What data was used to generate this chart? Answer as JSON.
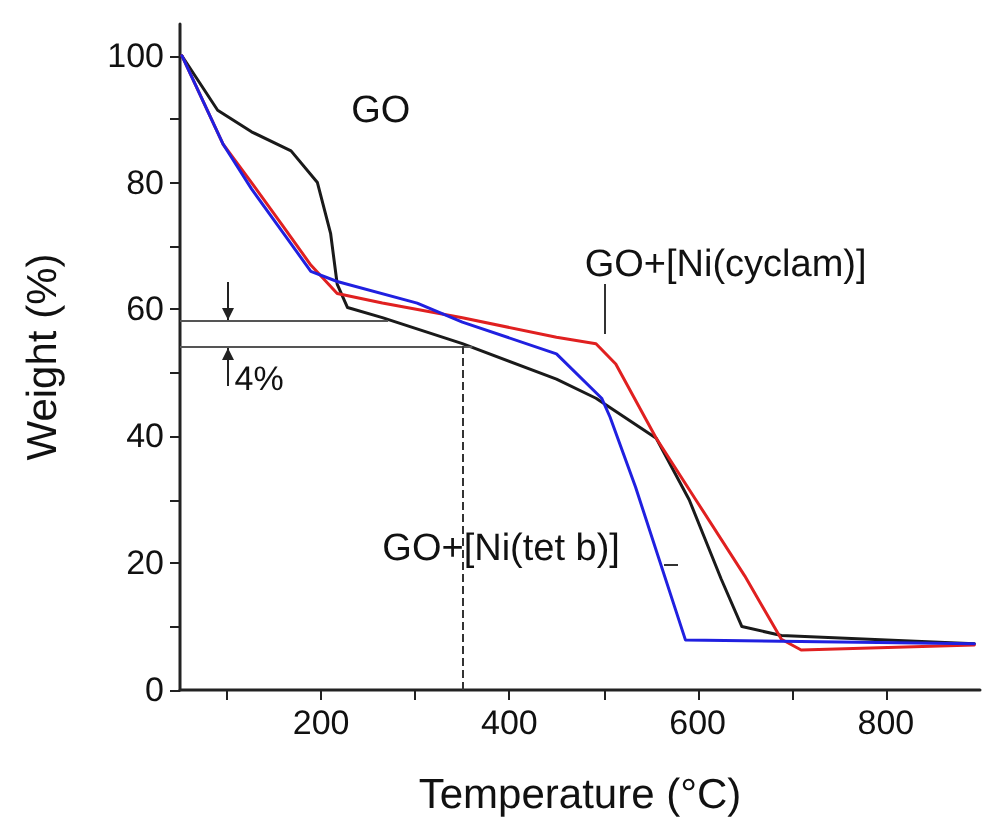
{
  "chart_data": {
    "type": "line",
    "xlabel": "Temperature (°C)",
    "ylabel": "Weight (%)",
    "xlim": [
      50,
      900
    ],
    "ylim": [
      0,
      105
    ],
    "xticks": [
      {
        "value": 100,
        "label": null
      },
      200,
      {
        "value": 300,
        "label": null
      },
      400,
      {
        "value": 500,
        "label": null
      },
      600,
      {
        "value": 700,
        "label": null
      },
      800
    ],
    "yticks": [
      0,
      {
        "value": 10,
        "label": null
      },
      20,
      {
        "value": 30,
        "label": null
      },
      40,
      {
        "value": 50,
        "label": null
      },
      60,
      {
        "value": 70,
        "label": null
      },
      80,
      {
        "value": 90,
        "label": null
      },
      100
    ],
    "grid": false,
    "legend": false,
    "marker": "none",
    "line_style": "solid",
    "series": [
      {
        "name": "GO",
        "color": "#1a1a1a",
        "x": [
          52,
          90,
          126,
          168,
          196,
          210,
          217,
          228,
          265,
          350,
          450,
          492,
          556,
          591,
          625,
          647,
          689,
          894
        ],
        "values": [
          100,
          91.4,
          88,
          85,
          80,
          72,
          64,
          60.3,
          58.7,
          54.6,
          49,
          46,
          39.7,
          30,
          17.5,
          10,
          8.6,
          7.3
        ]
      },
      {
        "name": "GO+[Ni(cyclam)]",
        "color": "#e02020",
        "x": [
          52,
          96,
          126,
          160,
          189,
          217,
          265,
          350,
          450,
          492,
          513,
          556,
          598,
          650,
          689,
          710,
          894
        ],
        "values": [
          100,
          86,
          80,
          73,
          67,
          62.5,
          61,
          58.7,
          55.6,
          54.6,
          51.4,
          39.7,
          30,
          18,
          8,
          6.3,
          7.1
        ]
      },
      {
        "name": "GO+[Ni(tet b)]",
        "color": "#2020e0",
        "x": [
          52,
          96,
          126,
          160,
          189,
          217,
          302,
          350,
          450,
          498,
          507,
          534,
          587,
          894
        ],
        "values": [
          100,
          86,
          79,
          72,
          66,
          64.4,
          61,
          58,
          53,
          46,
          43,
          32,
          7.9,
          7.3
        ]
      }
    ],
    "ref_lines": [
      {
        "axis": "y",
        "value": 58.4,
        "color": "#555555"
      },
      {
        "axis": "y",
        "value": 54,
        "color": "#555555"
      },
      {
        "axis": "x",
        "value": 350,
        "color": "#333333",
        "line_style": "dashed"
      }
    ],
    "annotations": [
      "4%"
    ]
  }
}
